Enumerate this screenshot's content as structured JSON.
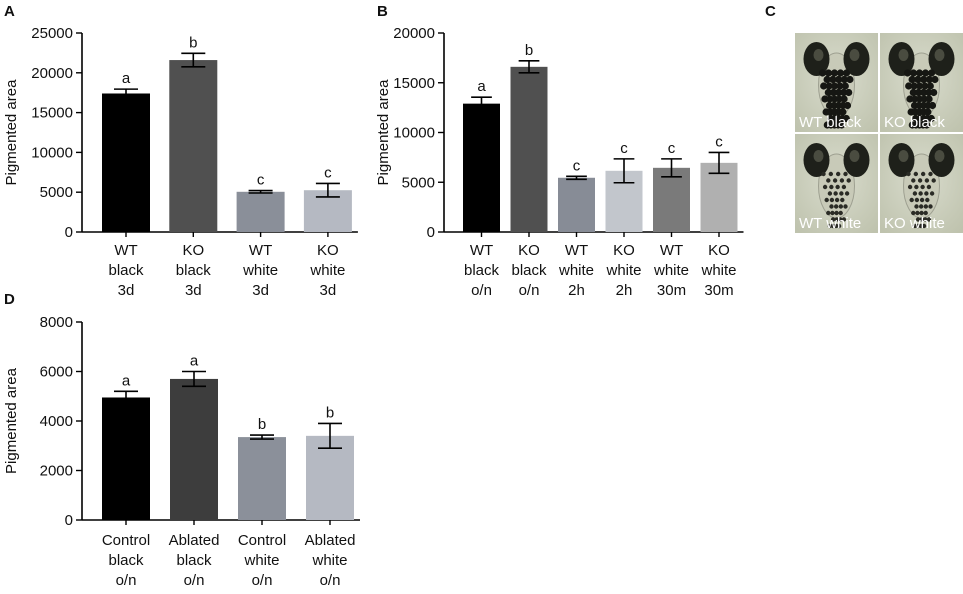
{
  "panels": {
    "A": "A",
    "B": "B",
    "C": "C",
    "D": "D"
  },
  "chart_data": [
    {
      "id": "A",
      "type": "bar",
      "ylabel": "Pigmented area",
      "ylim": [
        0,
        25000
      ],
      "yticks": [
        0,
        5000,
        10000,
        15000,
        20000,
        25000
      ],
      "categories": [
        [
          "WT",
          "black",
          "3d"
        ],
        [
          "KO",
          "black",
          "3d"
        ],
        [
          "WT",
          "white",
          "3d"
        ],
        [
          "KO",
          "white",
          "3d"
        ]
      ],
      "values": [
        17400,
        21600,
        5050,
        5250
      ],
      "errors": [
        550,
        850,
        150,
        850
      ],
      "significance": [
        "a",
        "b",
        "c",
        "c"
      ],
      "colors": [
        "#000000",
        "#505050",
        "#8a8f99",
        "#b5b9c2"
      ]
    },
    {
      "id": "B",
      "type": "bar",
      "ylabel": "Pigmented area",
      "ylim": [
        0,
        20000
      ],
      "yticks": [
        0,
        5000,
        10000,
        15000,
        20000
      ],
      "categories": [
        [
          "WT",
          "black",
          "o/n"
        ],
        [
          "KO",
          "black",
          "o/n"
        ],
        [
          "WT",
          "white",
          "2h"
        ],
        [
          "KO",
          "white",
          "2h"
        ],
        [
          "WT",
          "white",
          "30m"
        ],
        [
          "KO",
          "white",
          "30m"
        ]
      ],
      "values": [
        12900,
        16600,
        5450,
        6150,
        6450,
        6950
      ],
      "errors": [
        650,
        600,
        150,
        1200,
        900,
        1050
      ],
      "significance": [
        "a",
        "b",
        "c",
        "c",
        "c",
        "c"
      ],
      "colors": [
        "#000000",
        "#505050",
        "#878c96",
        "#c2c6cc",
        "#7a7a7a",
        "#b0b0b0"
      ]
    },
    {
      "id": "D",
      "type": "bar",
      "ylabel": "Pigmented area",
      "ylim": [
        0,
        8000
      ],
      "yticks": [
        0,
        2000,
        4000,
        6000,
        8000
      ],
      "categories": [
        [
          "Control",
          "black",
          "o/n"
        ],
        [
          "Ablated",
          "black",
          "o/n"
        ],
        [
          "Control",
          "white",
          "o/n"
        ],
        [
          "Ablated",
          "white",
          "o/n"
        ]
      ],
      "values": [
        4950,
        5700,
        3350,
        3400
      ],
      "errors": [
        250,
        300,
        80,
        500
      ],
      "significance": [
        "a",
        "a",
        "b",
        "b"
      ],
      "colors": [
        "#000000",
        "#3d3d3d",
        "#8b909a",
        "#b5b9c2"
      ]
    }
  ],
  "micrographs": [
    {
      "label": "WT black",
      "tone": "black"
    },
    {
      "label": "KO black",
      "tone": "black"
    },
    {
      "label": "WT white",
      "tone": "white"
    },
    {
      "label": "KO white",
      "tone": "white"
    }
  ]
}
